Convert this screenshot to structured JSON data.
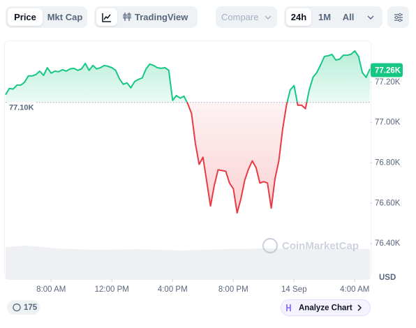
{
  "toolbar": {
    "price": "Price",
    "mkt_cap": "Mkt Cap",
    "trading_view": "TradingView",
    "compare": "Compare",
    "range_24h": "24h",
    "range_1m": "1M",
    "range_all": "All"
  },
  "footer": {
    "news_count": "175",
    "analyze": "Analyze Chart"
  },
  "watermark": "CoinMarketCap",
  "chart_data": {
    "type": "line",
    "y_unit": "USD",
    "x": [
      5,
      5.25,
      5.5,
      5.75,
      6,
      6.25,
      6.5,
      6.75,
      7,
      7.25,
      7.5,
      7.75,
      8,
      8.25,
      8.5,
      8.75,
      9,
      9.25,
      9.5,
      9.75,
      10,
      10.25,
      10.5,
      10.75,
      11,
      11.25,
      11.5,
      11.75,
      12,
      12.25,
      12.5,
      12.75,
      13,
      13.25,
      13.5,
      13.75,
      14,
      14.25,
      14.5,
      14.75,
      15,
      15.25,
      15.5,
      15.75,
      16,
      16.25,
      16.5,
      16.75,
      17,
      17.25,
      17.5,
      17.75,
      18,
      18.25,
      18.5,
      18.75,
      19,
      19.25,
      19.5,
      19.75,
      20,
      20.25,
      20.5,
      20.75,
      21,
      21.25,
      21.5,
      21.75,
      22,
      22.25,
      22.5,
      22.75,
      23,
      23.25,
      23.5,
      23.75,
      24,
      24.25,
      24.5,
      24.75,
      25,
      25.25,
      25.5,
      25.75,
      26,
      26.25,
      26.5,
      26.75,
      27,
      27.25,
      27.5,
      27.75,
      28,
      28.25,
      28.5,
      28.75,
      29
    ],
    "values": [
      77138,
      77169,
      77166,
      77186,
      77186,
      77200,
      77231,
      77231,
      77238,
      77255,
      77234,
      77272,
      77245,
      77255,
      77252,
      77262,
      77255,
      77266,
      77269,
      77259,
      77266,
      77293,
      77259,
      77283,
      77266,
      77272,
      77283,
      77279,
      77272,
      77259,
      77217,
      77190,
      77197,
      77172,
      77203,
      77214,
      77221,
      77266,
      77290,
      77283,
      77272,
      77269,
      77272,
      77259,
      77110,
      77134,
      77121,
      77131,
      77093,
      77045,
      76897,
      76793,
      76828,
      76707,
      76586,
      76690,
      76766,
      76762,
      76759,
      76700,
      76672,
      76552,
      76621,
      76714,
      76769,
      76810,
      76776,
      76700,
      76707,
      76700,
      76576,
      76724,
      76810,
      76966,
      77086,
      77162,
      77183,
      77086,
      77086,
      77069,
      77162,
      77224,
      77248,
      77286,
      77328,
      77331,
      77338,
      77310,
      77314,
      77334,
      77334,
      77338,
      77355,
      77328,
      77248,
      77224,
      77266
    ],
    "up_color": "#16c784",
    "down_color": "#ea3943",
    "baseline": 77100,
    "baseline_label": "77.10K",
    "current_price": 77260,
    "current_price_label": "77.26K",
    "xlim": [
      5,
      29
    ],
    "xticks": [
      {
        "value": 8,
        "label": "8:00 AM"
      },
      {
        "value": 12,
        "label": "12:00 PM"
      },
      {
        "value": 16,
        "label": "4:00 PM"
      },
      {
        "value": 20,
        "label": "8:00 PM"
      },
      {
        "value": 24,
        "label": "14 Sep"
      },
      {
        "value": 28,
        "label": "4:00 AM"
      }
    ],
    "ylim": [
      76350,
      77400
    ],
    "yticks": [
      {
        "value": 76400,
        "label": "76.40K"
      },
      {
        "value": 76600,
        "label": "76.60K"
      },
      {
        "value": 76800,
        "label": "76.80K"
      },
      {
        "value": 77000,
        "label": "77.00K"
      },
      {
        "value": 77200,
        "label": "77.20K"
      }
    ],
    "grid": false
  }
}
